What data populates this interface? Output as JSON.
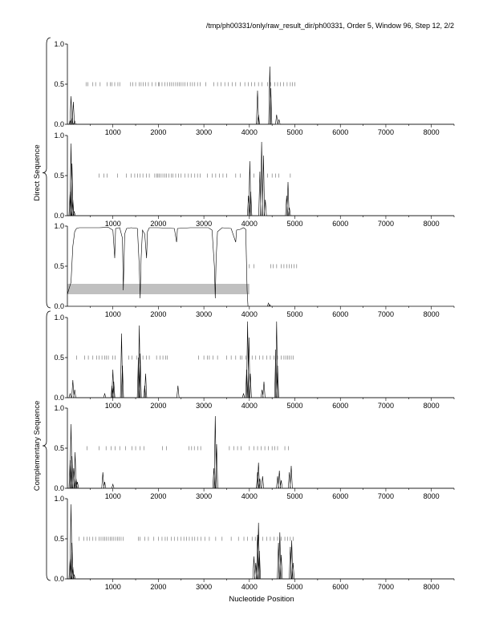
{
  "header": "/tmp/ph00331/only/raw_result_dir/ph00331, Order 5, Window 96, Step 12, 2/2",
  "xlabel": "Nucleotide Position",
  "groups": [
    {
      "label": "Direct Sequence"
    },
    {
      "label": "Complementary Sequence"
    }
  ],
  "chart_data": {
    "type": "line",
    "xlim": [
      0,
      8500
    ],
    "x_ticks": [
      1000,
      2000,
      3000,
      4000,
      5000,
      6000,
      7000,
      8000
    ],
    "y_ticks": [
      0.0,
      0.5,
      1.0
    ],
    "grid": false,
    "panels": [
      {
        "group": "Direct Sequence",
        "ylim": [
          0,
          1
        ],
        "series": [
          {
            "peaks": [
              [
                60,
                0.05
              ],
              [
                80,
                0.35
              ],
              [
                100,
                0.08
              ],
              [
                130,
                0.28
              ],
              [
                160,
                0.04
              ],
              [
                4180,
                0.42
              ],
              [
                4200,
                0.12
              ],
              [
                4450,
                0.72
              ],
              [
                4470,
                0.45
              ],
              [
                4600,
                0.12
              ],
              [
                4650,
                0.06
              ]
            ]
          }
        ],
        "marks_y": 0.5,
        "marks_x": [
          410,
          450,
          560,
          620,
          720,
          870,
          940,
          980,
          1040,
          1110,
          1150,
          1390,
          1440,
          1500,
          1580,
          1620,
          1670,
          1720,
          1780,
          1860,
          1940,
          2000,
          2020,
          2080,
          2140,
          2200,
          2250,
          2290,
          2330,
          2380,
          2420,
          2460,
          2500,
          2540,
          2580,
          2640,
          2700,
          2750,
          2800,
          2860,
          2920,
          3040,
          3220,
          3300,
          3380,
          3460,
          3540,
          3620,
          3700,
          3800,
          3900,
          3980,
          4050,
          4120,
          4200,
          4280,
          4400,
          4470,
          4560,
          4620,
          4680,
          4750,
          4830,
          4900,
          4950,
          5000
        ]
      },
      {
        "group": "Direct Sequence",
        "ylim": [
          0,
          1
        ],
        "series": [
          {
            "peaks": [
              [
                60,
                0.3
              ],
              [
                80,
                0.9
              ],
              [
                100,
                0.65
              ],
              [
                120,
                0.2
              ],
              [
                150,
                0.05
              ],
              [
                3980,
                0.25
              ],
              [
                4010,
                0.68
              ],
              [
                4030,
                0.3
              ],
              [
                4230,
                0.55
              ],
              [
                4270,
                0.92
              ],
              [
                4310,
                0.75
              ],
              [
                4350,
                0.2
              ],
              [
                4820,
                0.25
              ],
              [
                4850,
                0.42
              ],
              [
                4880,
                0.1
              ]
            ]
          }
        ],
        "marks_y": 0.5,
        "marks_x": [
          700,
          800,
          870,
          1100,
          1300,
          1400,
          1480,
          1540,
          1600,
          1660,
          1740,
          1800,
          1920,
          1960,
          1990,
          2020,
          2060,
          2100,
          2140,
          2180,
          2230,
          2280,
          2320,
          2380,
          2440,
          2500,
          2580,
          2660,
          2720,
          2800,
          2860,
          2920,
          3080,
          3180,
          3260,
          3340,
          3420,
          3500,
          3700,
          3800,
          4100,
          4400,
          4500,
          4580,
          4650,
          4900
        ]
      },
      {
        "group": "Direct Sequence",
        "ylim": [
          0,
          1
        ],
        "series": [
          {
            "line": [
              [
                0,
                0.15
              ],
              [
                80,
                0.3
              ],
              [
                120,
                0.75
              ],
              [
                160,
                0.93
              ],
              [
                200,
                0.97
              ],
              [
                260,
                0.98
              ],
              [
                700,
                0.98
              ],
              [
                900,
                0.985
              ],
              [
                1000,
                0.95
              ],
              [
                1040,
                0.6
              ],
              [
                1060,
                0.97
              ],
              [
                1150,
                0.98
              ],
              [
                1210,
                0.85
              ],
              [
                1230,
                0.2
              ],
              [
                1260,
                0.9
              ],
              [
                1300,
                0.97
              ],
              [
                1400,
                0.98
              ],
              [
                1540,
                0.97
              ],
              [
                1580,
                0.5
              ],
              [
                1600,
                0.1
              ],
              [
                1620,
                0.6
              ],
              [
                1650,
                0.95
              ],
              [
                1700,
                0.9
              ],
              [
                1740,
                0.6
              ],
              [
                1760,
                0.93
              ],
              [
                1800,
                0.98
              ],
              [
                2000,
                0.98
              ],
              [
                2350,
                0.97
              ],
              [
                2400,
                0.8
              ],
              [
                2420,
                0.97
              ],
              [
                2700,
                0.98
              ],
              [
                3100,
                0.98
              ],
              [
                3180,
                0.95
              ],
              [
                3230,
                0.5
              ],
              [
                3250,
                0.1
              ],
              [
                3270,
                0.6
              ],
              [
                3300,
                0.93
              ],
              [
                3400,
                0.98
              ],
              [
                3600,
                0.97
              ],
              [
                3700,
                0.8
              ],
              [
                3720,
                0.95
              ],
              [
                3800,
                0.96
              ],
              [
                3870,
                0.98
              ],
              [
                3920,
                0.96
              ],
              [
                3950,
                0.2
              ],
              [
                3970,
                0.0
              ]
            ]
          }
        ],
        "marks_y": 0.5,
        "marks_x": [
          4000,
          4100,
          4470,
          4520,
          4600,
          4700,
          4760,
          4820,
          4880,
          4930,
          4980,
          5040
        ],
        "shaded_band": {
          "x": [
            0,
            4000
          ],
          "y": [
            0.15,
            0.28
          ]
        },
        "extra_peaks": [
          [
            4420,
            0.04
          ],
          [
            4450,
            0.02
          ]
        ]
      },
      {
        "group": "Complementary Sequence",
        "ylim": [
          0,
          1
        ],
        "series": [
          {
            "peaks": [
              [
                60,
                0.05
              ],
              [
                120,
                0.22
              ],
              [
                160,
                0.1
              ],
              [
                820,
                0.05
              ],
              [
                980,
                0.15
              ],
              [
                1000,
                0.35
              ],
              [
                1020,
                0.2
              ],
              [
                1190,
                0.8
              ],
              [
                1210,
                0.4
              ],
              [
                1560,
                0.5
              ],
              [
                1580,
                0.9
              ],
              [
                1600,
                0.55
              ],
              [
                1700,
                0.15
              ],
              [
                1720,
                0.3
              ],
              [
                2430,
                0.15
              ],
              [
                3870,
                0.05
              ],
              [
                3940,
                0.35
              ],
              [
                3960,
                0.95
              ],
              [
                3990,
                0.75
              ],
              [
                4020,
                0.3
              ],
              [
                4280,
                0.1
              ],
              [
                4320,
                0.2
              ],
              [
                4580,
                0.6
              ],
              [
                4600,
                0.95
              ],
              [
                4620,
                0.4
              ]
            ]
          }
        ],
        "marks_y": 0.5,
        "marks_x": [
          200,
          380,
          460,
          560,
          640,
          700,
          760,
          820,
          860,
          900,
          1000,
          1050,
          1350,
          1420,
          1520,
          1660,
          1740,
          1800,
          1960,
          2040,
          2100,
          2160,
          2200,
          2880,
          3000,
          3080,
          3120,
          3200,
          3300,
          3500,
          3600,
          3700,
          3800,
          3840,
          3920,
          4000,
          4060,
          4140,
          4220,
          4300,
          4380,
          4460,
          4540,
          4620,
          4700,
          4760,
          4800,
          4840,
          4880,
          4920,
          4960
        ]
      },
      {
        "group": "Complementary Sequence",
        "ylim": [
          0,
          1
        ],
        "series": [
          {
            "peaks": [
              [
                60,
                0.35
              ],
              [
                80,
                0.8
              ],
              [
                100,
                0.4
              ],
              [
                140,
                0.25
              ],
              [
                170,
                0.45
              ],
              [
                190,
                0.12
              ],
              [
                220,
                0.08
              ],
              [
                780,
                0.2
              ],
              [
                820,
                0.08
              ],
              [
                1000,
                0.05
              ],
              [
                3220,
                0.25
              ],
              [
                3250,
                0.9
              ],
              [
                3280,
                0.55
              ],
              [
                4180,
                0.2
              ],
              [
                4200,
                0.32
              ],
              [
                4230,
                0.12
              ],
              [
                4290,
                0.15
              ],
              [
                4620,
                0.15
              ],
              [
                4660,
                0.22
              ],
              [
                4700,
                0.1
              ],
              [
                4880,
                0.2
              ],
              [
                4920,
                0.28
              ]
            ]
          }
        ],
        "marks_y": 0.5,
        "marks_x": [
          430,
          700,
          850,
          960,
          1050,
          1150,
          1280,
          1420,
          1500,
          1600,
          1680,
          2090,
          2180,
          2670,
          2730,
          2790,
          2870,
          2930,
          3560,
          3660,
          3740,
          3820,
          4000,
          4100,
          4180,
          4260,
          4340,
          4420,
          4500,
          4560,
          4620,
          4780,
          4860
        ]
      },
      {
        "group": "Complementary Sequence",
        "ylim": [
          0,
          1
        ],
        "series": [
          {
            "peaks": [
              [
                60,
                0.25
              ],
              [
                80,
                0.93
              ],
              [
                100,
                0.45
              ],
              [
                120,
                0.15
              ],
              [
                150,
                0.05
              ],
              [
                4100,
                0.28
              ],
              [
                4140,
                0.2
              ],
              [
                4180,
                0.55
              ],
              [
                4200,
                0.7
              ],
              [
                4220,
                0.35
              ],
              [
                4640,
                0.45
              ],
              [
                4670,
                0.58
              ],
              [
                4700,
                0.3
              ],
              [
                4900,
                0.4
              ],
              [
                4930,
                0.48
              ],
              [
                4960,
                0.2
              ]
            ]
          }
        ],
        "marks_y": 0.5,
        "marks_x": [
          260,
          360,
          430,
          490,
          560,
          620,
          700,
          740,
          780,
          820,
          860,
          900,
          940,
          980,
          1020,
          1060,
          1100,
          1140,
          1180,
          1230,
          1560,
          1600,
          1700,
          1780,
          1900,
          2000,
          2080,
          2150,
          2200,
          2280,
          2350,
          2420,
          2500,
          2560,
          2620,
          2680,
          2740,
          2800,
          2860,
          2940,
          3020,
          3120,
          3260,
          3400,
          3600,
          3760,
          3880,
          3960,
          4060,
          4130,
          4210,
          4290,
          4380,
          4460,
          4540,
          4620,
          4700,
          4780,
          4840,
          4900,
          4960
        ]
      }
    ]
  }
}
